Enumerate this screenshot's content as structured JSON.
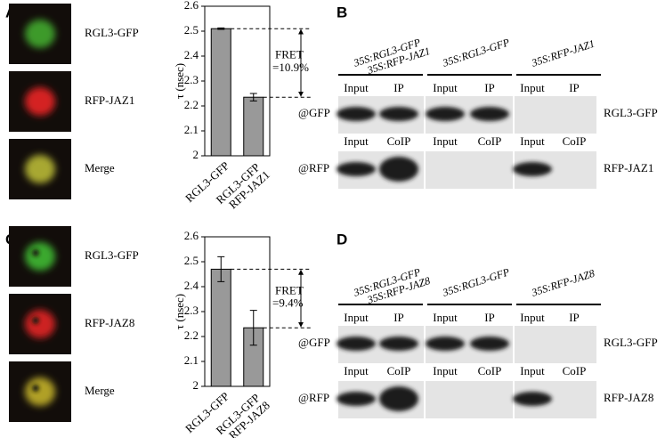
{
  "panel_labels": [
    "A",
    "B",
    "C",
    "D"
  ],
  "image_panels": [
    {
      "captions": [
        "RGL3-GFP",
        "RFP-JAZ1",
        "Merge"
      ]
    },
    {
      "captions": [
        "RGL3-GFP",
        "RFP-JAZ8",
        "Merge"
      ]
    }
  ],
  "chart_data": [
    {
      "type": "bar",
      "ylabel": "τ (nsec)",
      "categories": [
        "RGL3-GFP",
        "RGL3-GFP RFP-JAZ1"
      ],
      "values": [
        2.51,
        2.235
      ],
      "errors": [
        0.003,
        0.015
      ],
      "color": "#999999",
      "ylim": [
        2,
        2.6
      ],
      "yticks": [
        2,
        2.1,
        2.2,
        2.3,
        2.4,
        2.5,
        2.6
      ],
      "annotation": "FRET =10.9%"
    },
    {
      "type": "bar",
      "ylabel": "τ (nsec)",
      "categories": [
        "RGL3-GFP",
        "RGL3-GFP RFP-JAZ8"
      ],
      "values": [
        2.47,
        2.235
      ],
      "errors": [
        0.05,
        0.07
      ],
      "color": "#999999",
      "ylim": [
        2,
        2.6
      ],
      "yticks": [
        2,
        2.1,
        2.2,
        2.3,
        2.4,
        2.5,
        2.6
      ],
      "annotation": "FRET =9.4%"
    }
  ],
  "blots": [
    {
      "constructs": [
        "35S:RGL3-GFP 35S:RFP-JAZ1",
        "35S:RGL3-GFP",
        "35S:RFP-JAZ1"
      ],
      "lanes": [
        [
          "Input",
          "IP",
          "Input",
          "IP",
          "Input",
          "IP"
        ],
        [
          "Input",
          "CoIP",
          "Input",
          "CoIP",
          "Input",
          "CoIP"
        ]
      ],
      "antibodies": [
        "@GFP",
        "@RFP"
      ],
      "proteins": [
        "RGL3-GFP",
        "RFP-JAZ1"
      ]
    },
    {
      "constructs": [
        "35S:RGL3-GFP 35S:RFP-JAZ8",
        "35S:RGL3-GFP",
        "35S:RFP-JAZ8"
      ],
      "lanes": [
        [
          "Input",
          "IP",
          "Input",
          "IP",
          "Input",
          "IP"
        ],
        [
          "Input",
          "CoIP",
          "Input",
          "CoIP",
          "Input",
          "CoIP"
        ]
      ],
      "antibodies": [
        "@GFP",
        "@RFP"
      ],
      "proteins": [
        "RGL3-GFP",
        "RFP-JAZ8"
      ]
    }
  ]
}
